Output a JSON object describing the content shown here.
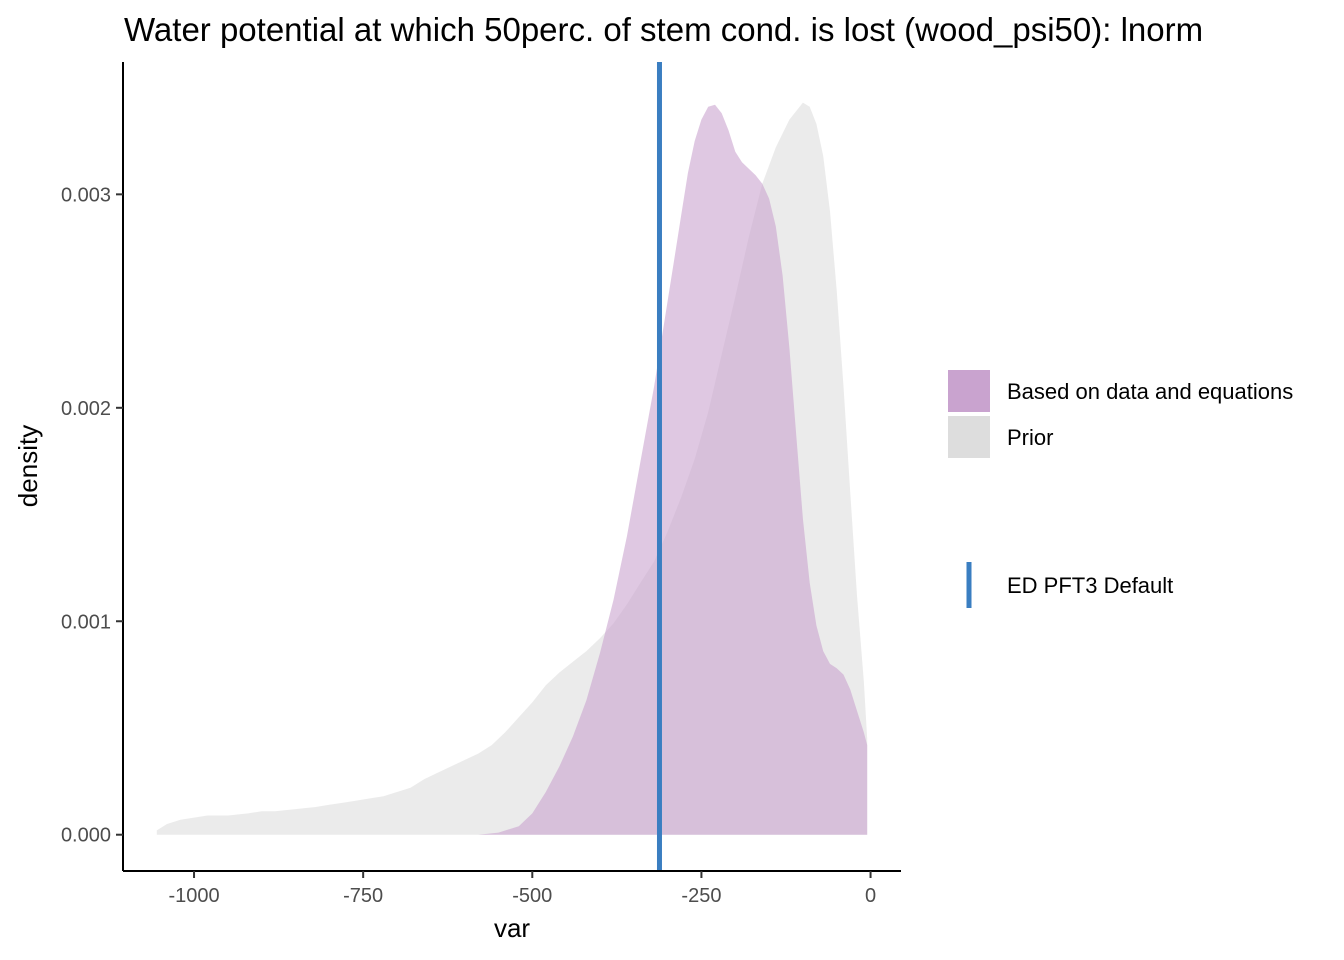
{
  "chart_data": {
    "type": "area",
    "title": "Water potential at which 50perc. of stem cond. is lost (wood_psi50): lnorm",
    "xlabel": "var",
    "ylabel": "density",
    "xlim": [
      -1105,
      45
    ],
    "ylim": [
      -0.00017,
      0.00362
    ],
    "x_ticks": [
      -1000,
      -750,
      -500,
      -250,
      0
    ],
    "x_tick_labels": [
      "-1000",
      "-750",
      "-500",
      "-250",
      "0"
    ],
    "y_ticks": [
      0,
      0.001,
      0.002,
      0.003
    ],
    "y_tick_labels": [
      "0.000",
      "0.001",
      "0.002",
      "0.003"
    ],
    "grid": false,
    "legend_position": "right",
    "series": [
      {
        "name": "Based on data and equations",
        "color": "#c9a3cf",
        "opacity": 0.6,
        "points": [
          [
            -580,
            0
          ],
          [
            -550,
            1e-05
          ],
          [
            -520,
            4e-05
          ],
          [
            -500,
            0.0001
          ],
          [
            -480,
            0.0002
          ],
          [
            -460,
            0.00032
          ],
          [
            -440,
            0.00046
          ],
          [
            -420,
            0.00063
          ],
          [
            -400,
            0.00085
          ],
          [
            -380,
            0.0011
          ],
          [
            -360,
            0.0014
          ],
          [
            -340,
            0.00175
          ],
          [
            -320,
            0.0021
          ],
          [
            -300,
            0.0025
          ],
          [
            -290,
            0.0027
          ],
          [
            -280,
            0.0029
          ],
          [
            -270,
            0.0031
          ],
          [
            -260,
            0.00325
          ],
          [
            -250,
            0.00335
          ],
          [
            -240,
            0.00341
          ],
          [
            -230,
            0.00342
          ],
          [
            -220,
            0.00338
          ],
          [
            -210,
            0.0033
          ],
          [
            -200,
            0.0032
          ],
          [
            -190,
            0.00315
          ],
          [
            -180,
            0.00312
          ],
          [
            -170,
            0.00309
          ],
          [
            -160,
            0.00305
          ],
          [
            -150,
            0.00298
          ],
          [
            -140,
            0.00285
          ],
          [
            -130,
            0.00262
          ],
          [
            -120,
            0.00228
          ],
          [
            -110,
            0.00188
          ],
          [
            -100,
            0.00148
          ],
          [
            -90,
            0.00118
          ],
          [
            -80,
            0.00098
          ],
          [
            -70,
            0.00086
          ],
          [
            -60,
            0.0008
          ],
          [
            -50,
            0.00078
          ],
          [
            -40,
            0.00075
          ],
          [
            -30,
            0.00068
          ],
          [
            -20,
            0.00058
          ],
          [
            -10,
            0.00048
          ],
          [
            -5,
            0.00042
          ],
          [
            -5,
            0
          ]
        ]
      },
      {
        "name": "Prior",
        "color": "#dddddd",
        "opacity": 0.6,
        "points": [
          [
            -1055,
            2e-05
          ],
          [
            -1040,
            5e-05
          ],
          [
            -1020,
            7e-05
          ],
          [
            -1000,
            8e-05
          ],
          [
            -980,
            9e-05
          ],
          [
            -950,
            9e-05
          ],
          [
            -920,
            0.0001
          ],
          [
            -900,
            0.00011
          ],
          [
            -880,
            0.00011
          ],
          [
            -850,
            0.00012
          ],
          [
            -820,
            0.00013
          ],
          [
            -800,
            0.00014
          ],
          [
            -780,
            0.00015
          ],
          [
            -760,
            0.00016
          ],
          [
            -740,
            0.00017
          ],
          [
            -720,
            0.00018
          ],
          [
            -700,
            0.0002
          ],
          [
            -680,
            0.00022
          ],
          [
            -660,
            0.00026
          ],
          [
            -640,
            0.00029
          ],
          [
            -620,
            0.00032
          ],
          [
            -600,
            0.00035
          ],
          [
            -580,
            0.00038
          ],
          [
            -560,
            0.00042
          ],
          [
            -540,
            0.00048
          ],
          [
            -520,
            0.00055
          ],
          [
            -500,
            0.00062
          ],
          [
            -480,
            0.0007
          ],
          [
            -460,
            0.00076
          ],
          [
            -440,
            0.00081
          ],
          [
            -420,
            0.00086
          ],
          [
            -400,
            0.00092
          ],
          [
            -380,
            0.00099
          ],
          [
            -360,
            0.00108
          ],
          [
            -340,
            0.00118
          ],
          [
            -320,
            0.00128
          ],
          [
            -300,
            0.00142
          ],
          [
            -280,
            0.00158
          ],
          [
            -260,
            0.00176
          ],
          [
            -240,
            0.00198
          ],
          [
            -220,
            0.00225
          ],
          [
            -200,
            0.00252
          ],
          [
            -180,
            0.0028
          ],
          [
            -160,
            0.00305
          ],
          [
            -140,
            0.00322
          ],
          [
            -120,
            0.00335
          ],
          [
            -100,
            0.00343
          ],
          [
            -90,
            0.00341
          ],
          [
            -80,
            0.00333
          ],
          [
            -70,
            0.00318
          ],
          [
            -60,
            0.00292
          ],
          [
            -50,
            0.00255
          ],
          [
            -40,
            0.0021
          ],
          [
            -30,
            0.0016
          ],
          [
            -20,
            0.00112
          ],
          [
            -10,
            0.00072
          ],
          [
            -5,
            0.00045
          ],
          [
            -5,
            0
          ]
        ]
      }
    ],
    "reference_lines": [
      {
        "name": "ED PFT3 Default",
        "x": -312,
        "color": "#3a7ec1"
      }
    ]
  }
}
